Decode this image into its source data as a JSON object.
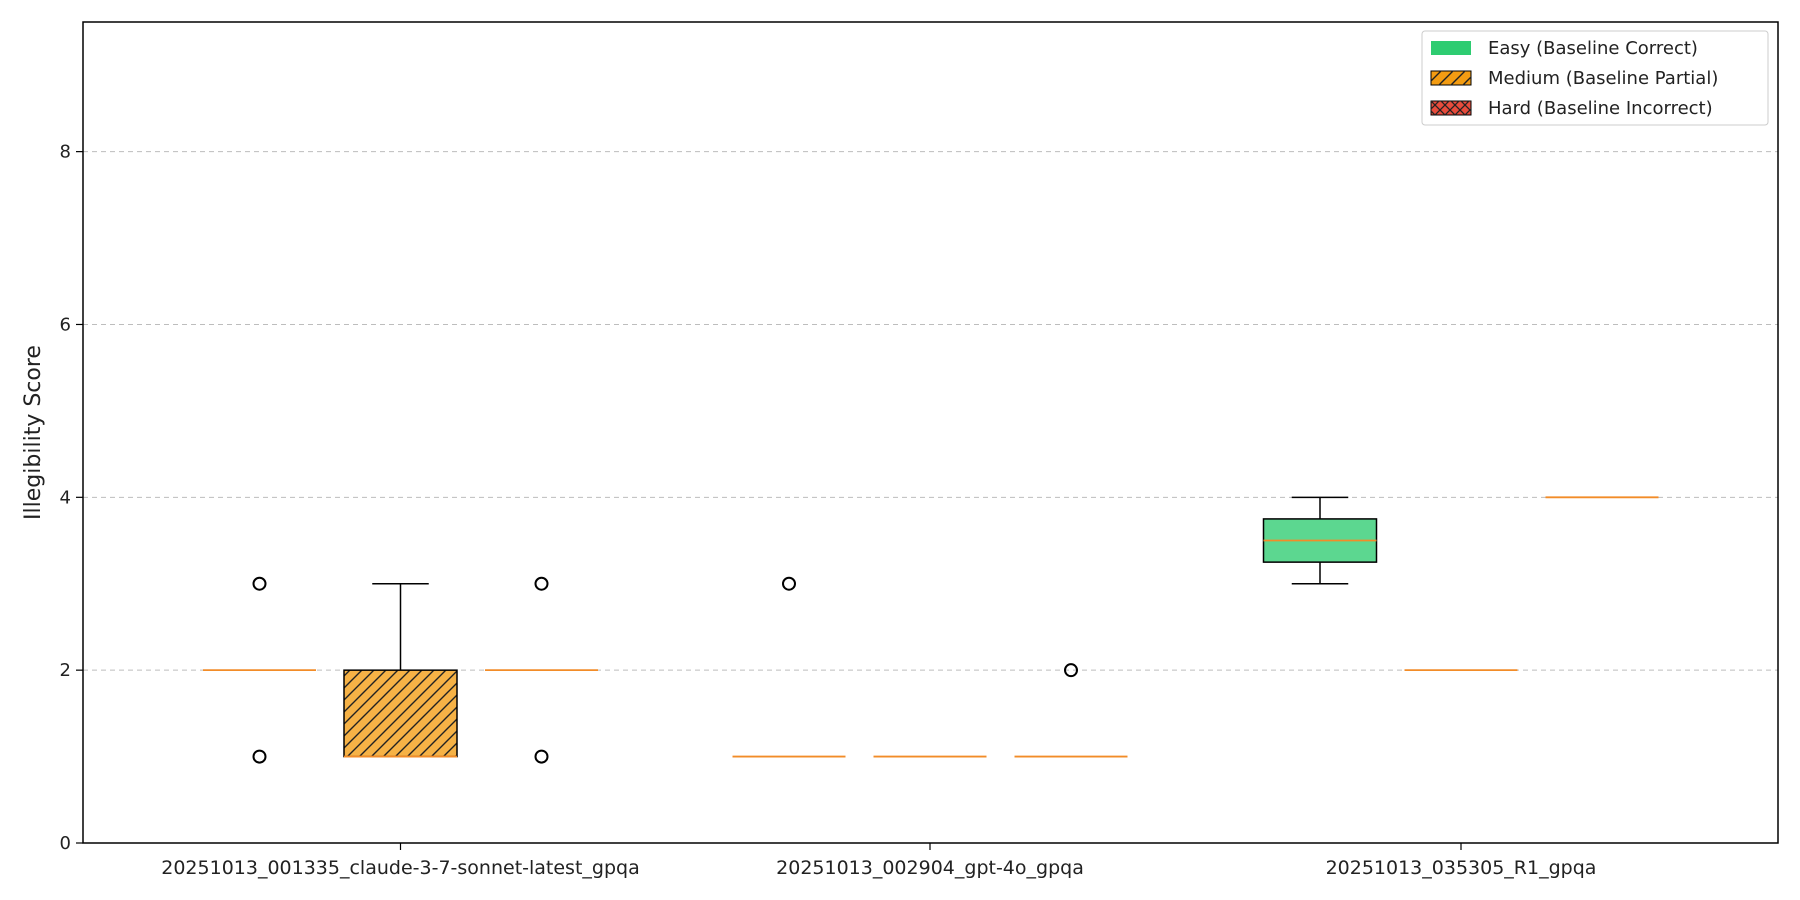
{
  "chart_data": {
    "type": "boxplot",
    "title": "",
    "xlabel": "",
    "ylabel": "Illegibility Score",
    "ylim": [
      0,
      9.5
    ],
    "yticks": [
      0,
      2,
      4,
      6,
      8
    ],
    "grid": "y-dashed",
    "legend_position": "top-right",
    "categories": [
      "20251013_001335_claude-3-7-sonnet-latest_gpqa",
      "20251013_002904_gpt-4o_gpqa",
      "20251013_035305_R1_gpqa"
    ],
    "series": [
      {
        "name": "Easy (Baseline Correct)",
        "color": "#2ecc71",
        "hatch": "none",
        "boxes": [
          {
            "q1": 2,
            "median": 2,
            "q3": 2,
            "whisker_low": 2,
            "whisker_high": 2,
            "fliers": [
              1,
              3
            ]
          },
          {
            "q1": 1,
            "median": 1,
            "q3": 1,
            "whisker_low": 1,
            "whisker_high": 1,
            "fliers": [
              3
            ]
          },
          {
            "q1": 3.25,
            "median": 3.5,
            "q3": 3.75,
            "whisker_low": 3,
            "whisker_high": 4,
            "fliers": []
          }
        ]
      },
      {
        "name": "Medium (Baseline Partial)",
        "color": "#f39c12",
        "hatch": "diagonal",
        "boxes": [
          {
            "q1": 1,
            "median": 1,
            "q3": 2,
            "whisker_low": 1,
            "whisker_high": 3,
            "fliers": []
          },
          {
            "q1": 1,
            "median": 1,
            "q3": 1,
            "whisker_low": 1,
            "whisker_high": 1,
            "fliers": []
          },
          {
            "q1": 2,
            "median": 2,
            "q3": 2,
            "whisker_low": 2,
            "whisker_high": 2,
            "fliers": []
          }
        ]
      },
      {
        "name": "Hard (Baseline Incorrect)",
        "color": "#e74c3c",
        "hatch": "cross",
        "boxes": [
          {
            "q1": 2,
            "median": 2,
            "q3": 2,
            "whisker_low": 2,
            "whisker_high": 2,
            "fliers": [
              1,
              3
            ]
          },
          {
            "q1": 1,
            "median": 1,
            "q3": 1,
            "whisker_low": 1,
            "whisker_high": 1,
            "fliers": [
              2
            ]
          },
          {
            "q1": 4,
            "median": 4,
            "q3": 4,
            "whisker_low": 4,
            "whisker_high": 4,
            "fliers": []
          }
        ]
      }
    ]
  }
}
